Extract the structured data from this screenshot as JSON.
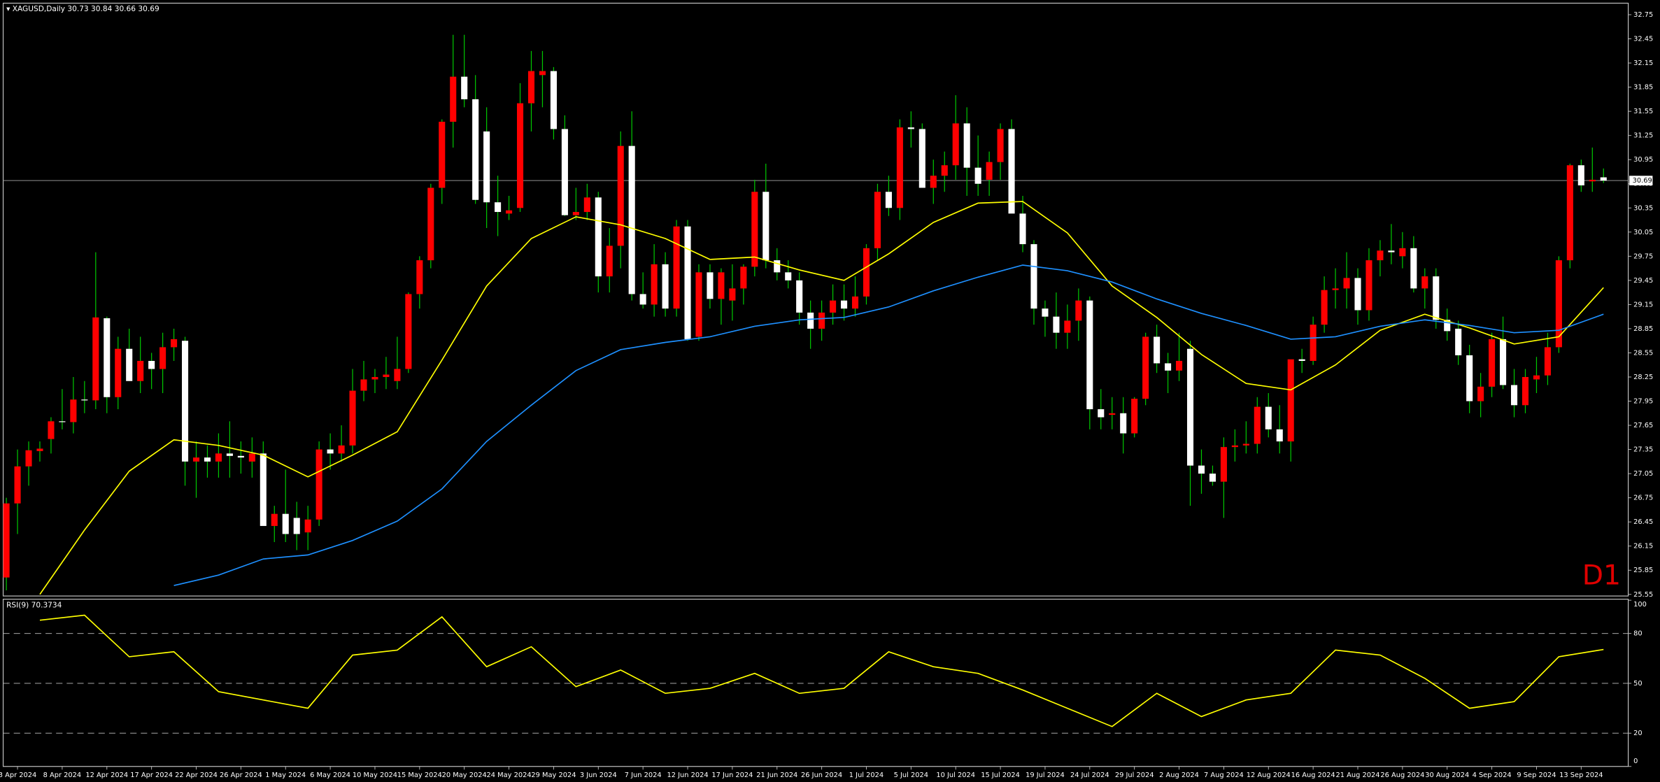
{
  "chart_data": [
    {
      "type": "candlestick",
      "title": "XAGUSD,Daily",
      "period_label": "D1",
      "up_color": "#ff0000",
      "down_color": "#ffffff",
      "wick_color": "#00c800",
      "ylim": [
        25.53,
        32.88
      ],
      "yticks": [
        32.75,
        32.45,
        32.15,
        31.85,
        31.55,
        31.25,
        30.95,
        30.65,
        30.35,
        30.05,
        29.75,
        29.45,
        29.15,
        28.85,
        28.55,
        28.25,
        27.95,
        27.65,
        27.35,
        27.05,
        26.75,
        26.45,
        26.15,
        25.85,
        25.55
      ],
      "categories": [
        null,
        "3 Apr 2024",
        null,
        null,
        null,
        "8 Apr 2024",
        null,
        null,
        null,
        "12 Apr 2024",
        null,
        null,
        null,
        "17 Apr 2024",
        null,
        null,
        null,
        "22 Apr 2024",
        null,
        null,
        null,
        "26 Apr 2024",
        null,
        null,
        null,
        "1 May 2024",
        null,
        null,
        null,
        "6 May 2024",
        null,
        null,
        null,
        "10 May 2024",
        null,
        null,
        null,
        "15 May 2024",
        null,
        null,
        null,
        "20 May 2024",
        null,
        null,
        null,
        "24 May 2024",
        null,
        null,
        null,
        "29 May 2024",
        null,
        null,
        null,
        "3 Jun 2024",
        null,
        null,
        null,
        "7 Jun 2024",
        null,
        null,
        null,
        "12 Jun 2024",
        null,
        null,
        null,
        "17 Jun 2024",
        null,
        null,
        null,
        "21 Jun 2024",
        null,
        null,
        null,
        "26 Jun 2024",
        null,
        null,
        null,
        "1 Jul 2024",
        null,
        null,
        null,
        "5 Jul 2024",
        null,
        null,
        null,
        "10 Jul 2024",
        null,
        null,
        null,
        "15 Jul 2024",
        null,
        null,
        null,
        "19 Jul 2024",
        null,
        null,
        null,
        "24 Jul 2024",
        null,
        null,
        null,
        "29 Jul 2024",
        null,
        null,
        null,
        "2 Aug 2024",
        null,
        null,
        null,
        "7 Aug 2024",
        null,
        null,
        null,
        "12 Aug 2024",
        null,
        null,
        null,
        "16 Aug 2024",
        null,
        null,
        null,
        "21 Aug 2024",
        null,
        null,
        null,
        "26 Aug 2024",
        null,
        null,
        null,
        "30 Aug 2024",
        null,
        null,
        null,
        "4 Sep 2024",
        null,
        null,
        null,
        "9 Sep 2024",
        null,
        null,
        null,
        "13 Sep 2024",
        null,
        null
      ],
      "ohlc": [
        [
          25.76,
          26.75,
          25.6,
          26.68
        ],
        [
          26.68,
          27.35,
          26.3,
          27.14
        ],
        [
          27.14,
          27.45,
          26.9,
          27.34
        ],
        [
          27.33,
          27.45,
          27.2,
          27.36
        ],
        [
          27.48,
          27.75,
          27.3,
          27.7
        ],
        [
          27.7,
          28.1,
          27.6,
          27.69
        ],
        [
          27.69,
          28.25,
          27.55,
          27.97
        ],
        [
          27.97,
          28.2,
          27.8,
          27.96
        ],
        [
          27.96,
          29.8,
          27.85,
          28.99
        ],
        [
          28.98,
          29.0,
          27.8,
          28.0
        ],
        [
          28.0,
          28.75,
          27.85,
          28.6
        ],
        [
          28.6,
          28.85,
          28.2,
          28.2
        ],
        [
          28.2,
          28.75,
          28.05,
          28.45
        ],
        [
          28.45,
          28.55,
          28.1,
          28.35
        ],
        [
          28.35,
          28.8,
          28.05,
          28.62
        ],
        [
          28.62,
          28.85,
          28.45,
          28.72
        ],
        [
          28.7,
          28.75,
          26.9,
          27.2
        ],
        [
          27.2,
          27.45,
          26.75,
          27.25
        ],
        [
          27.25,
          27.4,
          27.0,
          27.2
        ],
        [
          27.2,
          27.55,
          27.0,
          27.3
        ],
        [
          27.3,
          27.7,
          27.0,
          27.27
        ],
        [
          27.27,
          27.45,
          27.05,
          27.25
        ],
        [
          27.2,
          27.5,
          27.0,
          27.3
        ],
        [
          27.3,
          27.45,
          26.45,
          26.4
        ],
        [
          26.4,
          26.65,
          26.2,
          26.55
        ],
        [
          26.55,
          27.1,
          26.2,
          26.3
        ],
        [
          26.5,
          26.7,
          26.1,
          26.3
        ],
        [
          26.32,
          26.65,
          26.1,
          26.48
        ],
        [
          26.48,
          27.45,
          26.4,
          27.35
        ],
        [
          27.35,
          27.55,
          27.1,
          27.3
        ],
        [
          27.3,
          27.65,
          27.2,
          27.4
        ],
        [
          27.4,
          28.35,
          27.3,
          28.08
        ],
        [
          28.08,
          28.45,
          27.95,
          28.22
        ],
        [
          28.22,
          28.35,
          28.05,
          28.25
        ],
        [
          28.25,
          28.5,
          28.1,
          28.28
        ],
        [
          28.2,
          28.75,
          28.1,
          28.35
        ],
        [
          28.35,
          29.3,
          28.3,
          29.28
        ],
        [
          29.28,
          29.75,
          29.1,
          29.7
        ],
        [
          29.7,
          30.65,
          29.6,
          30.6
        ],
        [
          30.6,
          31.45,
          30.4,
          31.42
        ],
        [
          31.42,
          32.5,
          31.1,
          31.98
        ],
        [
          31.98,
          32.5,
          31.6,
          31.7
        ],
        [
          31.7,
          32.0,
          30.4,
          30.45
        ],
        [
          31.3,
          31.6,
          30.1,
          30.42
        ],
        [
          30.42,
          30.75,
          30.0,
          30.3
        ],
        [
          30.28,
          30.5,
          30.2,
          30.32
        ],
        [
          30.35,
          31.9,
          30.3,
          31.65
        ],
        [
          31.65,
          32.3,
          31.3,
          32.05
        ],
        [
          32.0,
          32.3,
          31.6,
          32.05
        ],
        [
          32.05,
          32.1,
          31.2,
          31.33
        ],
        [
          31.33,
          31.5,
          30.25,
          30.26
        ],
        [
          30.26,
          30.6,
          30.2,
          30.3
        ],
        [
          30.3,
          30.65,
          30.2,
          30.48
        ],
        [
          30.48,
          30.55,
          29.3,
          29.5
        ],
        [
          29.5,
          30.1,
          29.3,
          29.88
        ],
        [
          29.88,
          31.3,
          29.6,
          31.12
        ],
        [
          31.12,
          31.55,
          29.2,
          29.28
        ],
        [
          29.28,
          29.55,
          29.1,
          29.15
        ],
        [
          29.15,
          29.9,
          29.0,
          29.65
        ],
        [
          29.65,
          29.8,
          29.0,
          29.1
        ],
        [
          29.1,
          30.2,
          29.0,
          30.12
        ],
        [
          30.12,
          30.2,
          28.7,
          28.72
        ],
        [
          28.75,
          29.65,
          28.7,
          29.55
        ],
        [
          29.55,
          29.65,
          29.1,
          29.22
        ],
        [
          29.22,
          29.6,
          28.9,
          29.55
        ],
        [
          29.2,
          29.65,
          28.95,
          29.35
        ],
        [
          29.35,
          29.65,
          29.15,
          29.62
        ],
        [
          29.62,
          30.7,
          29.5,
          30.55
        ],
        [
          30.55,
          30.9,
          29.6,
          29.7
        ],
        [
          29.7,
          29.85,
          29.45,
          29.55
        ],
        [
          29.55,
          29.7,
          29.35,
          29.45
        ],
        [
          29.45,
          29.55,
          28.9,
          29.05
        ],
        [
          29.05,
          29.2,
          28.6,
          28.85
        ],
        [
          28.85,
          29.2,
          28.7,
          29.05
        ],
        [
          29.05,
          29.4,
          28.9,
          29.2
        ],
        [
          29.2,
          29.4,
          28.95,
          29.1
        ],
        [
          29.1,
          29.5,
          29.0,
          29.25
        ],
        [
          29.25,
          29.9,
          29.15,
          29.85
        ],
        [
          29.85,
          30.65,
          29.7,
          30.55
        ],
        [
          30.55,
          30.75,
          30.25,
          30.35
        ],
        [
          30.35,
          31.45,
          30.2,
          31.35
        ],
        [
          31.35,
          31.55,
          31.1,
          31.33
        ],
        [
          31.33,
          31.4,
          30.6,
          30.6
        ],
        [
          30.6,
          30.95,
          30.4,
          30.75
        ],
        [
          30.75,
          31.05,
          30.55,
          30.88
        ],
        [
          30.88,
          31.75,
          30.7,
          31.4
        ],
        [
          31.4,
          31.6,
          30.5,
          30.85
        ],
        [
          30.85,
          31.25,
          30.5,
          30.65
        ],
        [
          30.7,
          31.05,
          30.5,
          30.92
        ],
        [
          30.92,
          31.4,
          30.7,
          31.33
        ],
        [
          31.33,
          31.45,
          30.3,
          30.28
        ],
        [
          30.28,
          30.5,
          29.8,
          29.9
        ],
        [
          29.9,
          29.95,
          28.9,
          29.1
        ],
        [
          29.1,
          29.2,
          28.75,
          29.0
        ],
        [
          29.0,
          29.3,
          28.6,
          28.8
        ],
        [
          28.8,
          29.15,
          28.6,
          28.95
        ],
        [
          28.95,
          29.35,
          28.7,
          29.2
        ],
        [
          29.2,
          29.25,
          27.6,
          27.85
        ],
        [
          27.85,
          28.1,
          27.6,
          27.75
        ],
        [
          27.78,
          28.0,
          27.6,
          27.8
        ],
        [
          27.8,
          28.0,
          27.3,
          27.55
        ],
        [
          27.55,
          28.0,
          27.5,
          27.98
        ],
        [
          27.98,
          28.8,
          27.9,
          28.75
        ],
        [
          28.75,
          28.9,
          28.3,
          28.42
        ],
        [
          28.42,
          28.55,
          28.05,
          28.33
        ],
        [
          28.33,
          28.8,
          28.2,
          28.45
        ],
        [
          28.6,
          28.7,
          26.65,
          27.15
        ],
        [
          27.15,
          27.35,
          26.8,
          27.05
        ],
        [
          27.05,
          27.15,
          26.9,
          26.95
        ],
        [
          26.95,
          27.5,
          26.5,
          27.38
        ],
        [
          27.38,
          27.6,
          27.2,
          27.4
        ],
        [
          27.4,
          27.7,
          27.3,
          27.42
        ],
        [
          27.42,
          28.0,
          27.3,
          27.88
        ],
        [
          27.88,
          28.05,
          27.5,
          27.6
        ],
        [
          27.6,
          27.9,
          27.3,
          27.45
        ],
        [
          27.45,
          28.4,
          27.2,
          28.47
        ],
        [
          28.47,
          28.6,
          28.3,
          28.45
        ],
        [
          28.45,
          29.0,
          28.4,
          28.9
        ],
        [
          28.9,
          29.5,
          28.8,
          29.33
        ],
        [
          29.33,
          29.6,
          29.1,
          29.35
        ],
        [
          29.35,
          29.8,
          29.1,
          29.48
        ],
        [
          29.48,
          29.6,
          28.9,
          29.08
        ],
        [
          29.08,
          29.85,
          28.95,
          29.7
        ],
        [
          29.7,
          29.95,
          29.5,
          29.82
        ],
        [
          29.82,
          30.15,
          29.65,
          29.8
        ],
        [
          29.75,
          30.05,
          29.6,
          29.85
        ],
        [
          29.85,
          30.0,
          29.3,
          29.35
        ],
        [
          29.35,
          29.6,
          29.1,
          29.5
        ],
        [
          29.5,
          29.6,
          28.85,
          28.96
        ],
        [
          28.96,
          29.1,
          28.7,
          28.82
        ],
        [
          28.85,
          28.95,
          28.4,
          28.52
        ],
        [
          28.52,
          28.65,
          27.8,
          27.95
        ],
        [
          27.95,
          28.3,
          27.75,
          28.13
        ],
        [
          28.13,
          28.8,
          28.0,
          28.72
        ],
        [
          28.72,
          29.0,
          28.1,
          28.15
        ],
        [
          28.15,
          28.35,
          27.75,
          27.9
        ],
        [
          27.9,
          28.35,
          27.8,
          28.25
        ],
        [
          28.22,
          28.5,
          28.05,
          28.27
        ],
        [
          28.27,
          28.8,
          28.15,
          28.62
        ],
        [
          28.62,
          29.75,
          28.55,
          29.7
        ],
        [
          29.7,
          30.9,
          29.6,
          30.88
        ],
        [
          30.88,
          30.95,
          30.55,
          30.63
        ],
        [
          30.68,
          31.1,
          30.55,
          30.7
        ],
        [
          30.73,
          30.84,
          30.66,
          30.69
        ]
      ],
      "lines": [
        {
          "color": "#ffff00",
          "values": [
            25.55,
            26.35,
            27.08,
            27.47,
            27.4,
            27.28,
            27.01,
            27.28,
            27.57,
            28.46,
            29.38,
            29.97,
            30.24,
            30.14,
            29.97,
            29.71,
            29.74,
            29.58,
            29.45,
            29.78,
            30.17,
            30.41,
            30.43,
            30.04,
            29.38,
            28.99,
            28.53,
            28.17,
            28.09,
            28.4,
            28.83,
            29.03,
            28.86,
            28.66,
            28.75,
            29.36
          ]
        },
        {
          "color": "#1e90ff",
          "values": [
            null,
            null,
            null,
            25.66,
            25.79,
            25.99,
            26.04,
            26.22,
            26.46,
            26.86,
            27.45,
            27.9,
            28.33,
            28.59,
            28.68,
            28.75,
            28.88,
            28.96,
            28.99,
            29.12,
            29.32,
            29.49,
            29.64,
            29.57,
            29.43,
            29.22,
            29.04,
            28.89,
            28.72,
            28.75,
            28.88,
            28.96,
            28.89,
            28.8,
            28.83,
            29.03
          ]
        }
      ]
    },
    {
      "type": "line",
      "title": "RSI(9)",
      "color": "#ffff00",
      "ylim": [
        0,
        100
      ],
      "yticks": [
        100,
        80,
        50,
        20,
        0
      ],
      "values": [
        88,
        91,
        66,
        69,
        45,
        40,
        35,
        67,
        70,
        90,
        60,
        72,
        48,
        58,
        44,
        47,
        56,
        44,
        47,
        69,
        60,
        56,
        46,
        35,
        24,
        44,
        30,
        40,
        44,
        70,
        67,
        53,
        35,
        39,
        66,
        70.3734
      ]
    }
  ]
}
